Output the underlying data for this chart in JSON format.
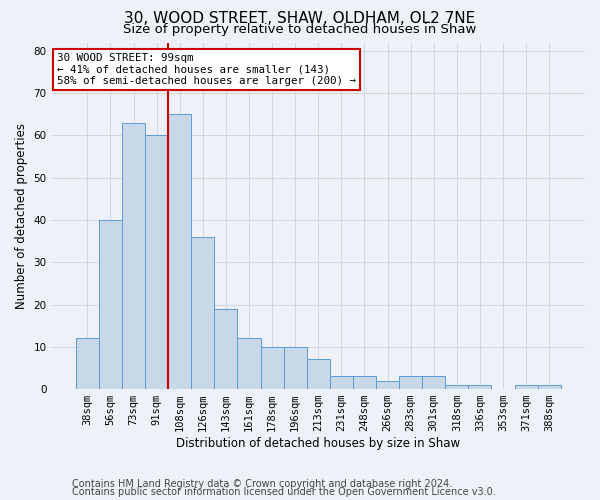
{
  "title1": "30, WOOD STREET, SHAW, OLDHAM, OL2 7NE",
  "title2": "Size of property relative to detached houses in Shaw",
  "xlabel": "Distribution of detached houses by size in Shaw",
  "ylabel": "Number of detached properties",
  "bar_color": "#c8d8e8",
  "bar_edge_color": "#5b9bd5",
  "categories": [
    "38sqm",
    "56sqm",
    "73sqm",
    "91sqm",
    "108sqm",
    "126sqm",
    "143sqm",
    "161sqm",
    "178sqm",
    "196sqm",
    "213sqm",
    "231sqm",
    "248sqm",
    "266sqm",
    "283sqm",
    "301sqm",
    "318sqm",
    "336sqm",
    "353sqm",
    "371sqm",
    "388sqm"
  ],
  "values": [
    12,
    40,
    63,
    60,
    65,
    36,
    19,
    12,
    10,
    10,
    7,
    3,
    3,
    2,
    3,
    3,
    1,
    1,
    0,
    1,
    1
  ],
  "ylim": [
    0,
    82
  ],
  "yticks": [
    0,
    10,
    20,
    30,
    40,
    50,
    60,
    70,
    80
  ],
  "vline_x": 3.5,
  "vline_color": "#cc0000",
  "annotation_line1": "30 WOOD STREET: 99sqm",
  "annotation_line2": "← 41% of detached houses are smaller (143)",
  "annotation_line3": "58% of semi-detached houses are larger (200) →",
  "annotation_box_color": "#ffffff",
  "annotation_box_edge": "#cc0000",
  "footer1": "Contains HM Land Registry data © Crown copyright and database right 2024.",
  "footer2": "Contains public sector information licensed under the Open Government Licence v3.0.",
  "background_color": "#eef2f8",
  "plot_bg_color": "#eef2f8",
  "grid_color": "#d0d8e8",
  "title1_fontsize": 11,
  "title2_fontsize": 9.5,
  "axis_label_fontsize": 8.5,
  "tick_fontsize": 7.5,
  "annotation_fontsize": 7.8,
  "footer_fontsize": 7
}
